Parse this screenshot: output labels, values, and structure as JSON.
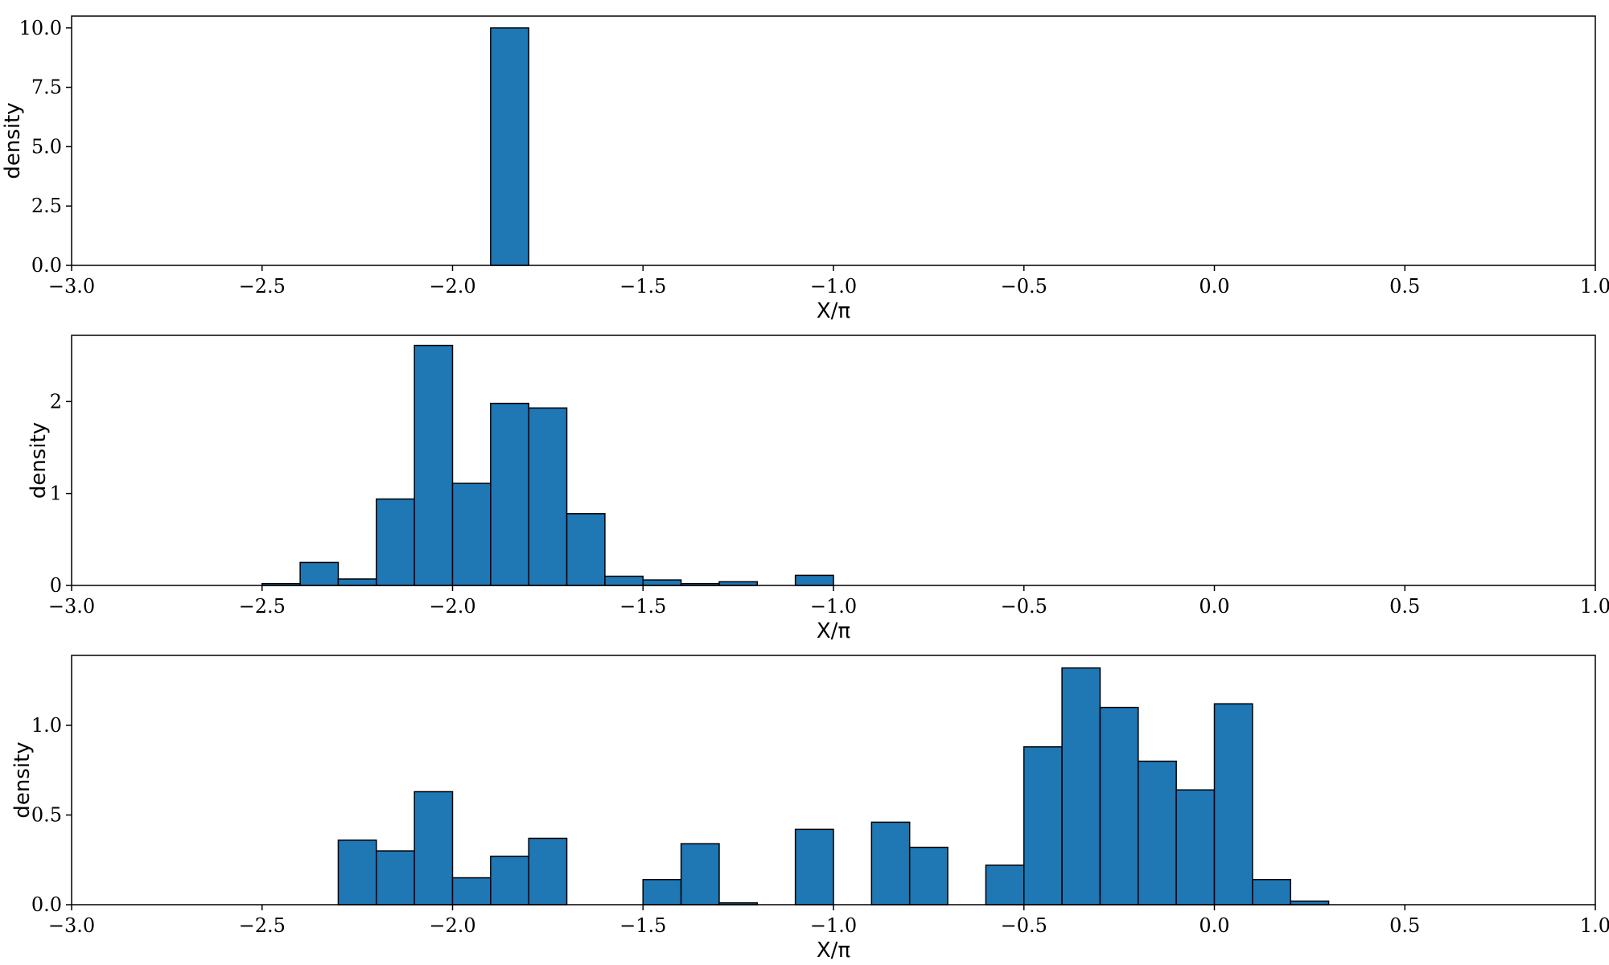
{
  "colors": {
    "bar_fill": "#1f77b4",
    "bar_edge": "#000000"
  },
  "chart_data": [
    {
      "type": "bar",
      "title": "",
      "xlabel": "X/π",
      "ylabel": "density",
      "xlim": [
        -3.0,
        1.0
      ],
      "ylim": [
        0,
        10.5
      ],
      "xticks": [
        -3.0,
        -2.5,
        -2.0,
        -1.5,
        -1.0,
        -0.5,
        0.0,
        0.5,
        1.0
      ],
      "xtick_labels": [
        "−3.0",
        "−2.5",
        "−2.0",
        "−1.5",
        "−1.0",
        "−0.5",
        "0.0",
        "0.5",
        "1.0"
      ],
      "yticks": [
        0.0,
        2.5,
        5.0,
        7.5,
        10.0
      ],
      "ytick_labels": [
        "0.0",
        "2.5",
        "5.0",
        "7.5",
        "10.0"
      ],
      "bin_width": 0.1,
      "bars": [
        {
          "x": -1.9,
          "value": 10.0
        }
      ]
    },
    {
      "type": "bar",
      "title": "",
      "xlabel": "X/π",
      "ylabel": "density",
      "xlim": [
        -3.0,
        1.0
      ],
      "ylim": [
        0,
        2.72
      ],
      "xticks": [
        -3.0,
        -2.5,
        -2.0,
        -1.5,
        -1.0,
        -0.5,
        0.0,
        0.5,
        1.0
      ],
      "xtick_labels": [
        "−3.0",
        "−2.5",
        "−2.0",
        "−1.5",
        "−1.0",
        "−0.5",
        "0.0",
        "0.5",
        "1.0"
      ],
      "yticks": [
        0,
        1,
        2
      ],
      "ytick_labels": [
        "0",
        "1",
        "2"
      ],
      "bin_width": 0.1,
      "bars": [
        {
          "x": -2.5,
          "value": 0.02
        },
        {
          "x": -2.4,
          "value": 0.25
        },
        {
          "x": -2.3,
          "value": 0.07
        },
        {
          "x": -2.2,
          "value": 0.94
        },
        {
          "x": -2.1,
          "value": 2.61
        },
        {
          "x": -2.0,
          "value": 1.11
        },
        {
          "x": -1.9,
          "value": 1.98
        },
        {
          "x": -1.8,
          "value": 1.93
        },
        {
          "x": -1.7,
          "value": 0.78
        },
        {
          "x": -1.6,
          "value": 0.1
        },
        {
          "x": -1.5,
          "value": 0.06
        },
        {
          "x": -1.4,
          "value": 0.02
        },
        {
          "x": -1.3,
          "value": 0.04
        },
        {
          "x": -1.1,
          "value": 0.11
        }
      ]
    },
    {
      "type": "bar",
      "title": "",
      "xlabel": "X/π",
      "ylabel": "density",
      "xlim": [
        -3.0,
        1.0
      ],
      "ylim": [
        0,
        1.39
      ],
      "xticks": [
        -3.0,
        -2.5,
        -2.0,
        -1.5,
        -1.0,
        -0.5,
        0.0,
        0.5,
        1.0
      ],
      "xtick_labels": [
        "−3.0",
        "−2.5",
        "−2.0",
        "−1.5",
        "−1.0",
        "−0.5",
        "0.0",
        "0.5",
        "1.0"
      ],
      "yticks": [
        0.0,
        0.5,
        1.0
      ],
      "ytick_labels": [
        "0.0",
        "0.5",
        "1.0"
      ],
      "bin_width": 0.1,
      "bars": [
        {
          "x": -2.3,
          "value": 0.36
        },
        {
          "x": -2.2,
          "value": 0.3
        },
        {
          "x": -2.1,
          "value": 0.63
        },
        {
          "x": -2.0,
          "value": 0.15
        },
        {
          "x": -1.9,
          "value": 0.27
        },
        {
          "x": -1.8,
          "value": 0.37
        },
        {
          "x": -1.5,
          "value": 0.14
        },
        {
          "x": -1.4,
          "value": 0.34
        },
        {
          "x": -1.3,
          "value": 0.01
        },
        {
          "x": -1.1,
          "value": 0.42
        },
        {
          "x": -0.9,
          "value": 0.46
        },
        {
          "x": -0.8,
          "value": 0.32
        },
        {
          "x": -0.6,
          "value": 0.22
        },
        {
          "x": -0.5,
          "value": 0.88
        },
        {
          "x": -0.4,
          "value": 1.32
        },
        {
          "x": -0.3,
          "value": 1.1
        },
        {
          "x": -0.2,
          "value": 0.8
        },
        {
          "x": -0.1,
          "value": 0.64
        },
        {
          "x": 0.0,
          "value": 1.12
        },
        {
          "x": 0.1,
          "value": 0.14
        },
        {
          "x": 0.2,
          "value": 0.02
        }
      ]
    }
  ]
}
